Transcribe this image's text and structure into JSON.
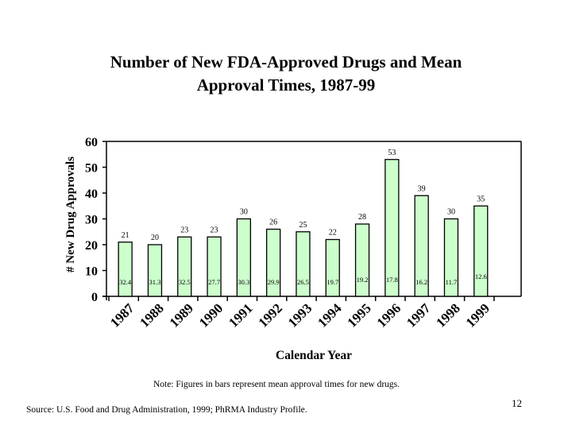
{
  "chart_data": {
    "type": "bar",
    "title": "Number of New FDA-Approved Drugs and Mean Approval Times, 1987-99",
    "title_lines": [
      "Number of New FDA-Approved Drugs and Mean",
      "Approval Times, 1987-99"
    ],
    "xlabel": "Calendar Year",
    "ylabel": "# New Drug Approvals",
    "ylim": [
      0,
      60
    ],
    "yticks": [
      0,
      10,
      20,
      30,
      40,
      50,
      60
    ],
    "grid": false,
    "legend": "none",
    "bar_color": "#ccffcc",
    "categories": [
      "1987",
      "1988",
      "1989",
      "1990",
      "1991",
      "1992",
      "1993",
      "1994",
      "1995",
      "1996",
      "1997",
      "1998",
      "1999"
    ],
    "series": [
      {
        "name": "New Drug Approvals",
        "values": [
          21,
          20,
          23,
          23,
          30,
          26,
          25,
          22,
          28,
          53,
          39,
          30,
          35
        ]
      },
      {
        "name": "Mean Approval Time (months)",
        "values": [
          32.4,
          31.3,
          32.5,
          27.7,
          30.3,
          29.9,
          26.5,
          19.7,
          19.2,
          17.8,
          16.2,
          11.7,
          12.6
        ]
      }
    ]
  },
  "footer": {
    "note": "Note: Figures in bars represent mean approval times for new drugs.",
    "source": "Source: U.S. Food and Drug Administration, 1999; PhRMA Industry Profile.",
    "page_number": "12"
  }
}
